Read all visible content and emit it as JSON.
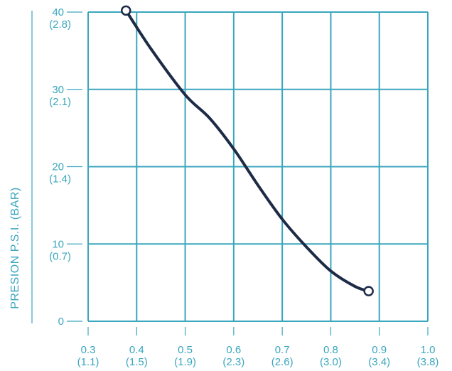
{
  "colors": {
    "grid": "#3aa6bd",
    "text": "#3aa6bd",
    "line": "#1d2b47",
    "marker_fill": "#ffffff"
  },
  "chart_data": {
    "type": "line",
    "title": "",
    "ylabel": "PRESION P.S.I. (BAR)",
    "xlabel": "",
    "xlim": [
      0.3,
      1.0
    ],
    "ylim": [
      0,
      40
    ],
    "grid": true,
    "x_ticks": [
      {
        "value": 0.3,
        "label": "0.3",
        "sub": "(1.1)"
      },
      {
        "value": 0.4,
        "label": "0.4",
        "sub": "(1.5)"
      },
      {
        "value": 0.5,
        "label": "0.5",
        "sub": "(1.9)"
      },
      {
        "value": 0.6,
        "label": "0.6",
        "sub": "(2.3)"
      },
      {
        "value": 0.7,
        "label": "0.7",
        "sub": "(2.6)"
      },
      {
        "value": 0.8,
        "label": "0.8",
        "sub": "(3.0)"
      },
      {
        "value": 0.9,
        "label": "0.9",
        "sub": "(3.4)"
      },
      {
        "value": 1.0,
        "label": "1.0",
        "sub": "(3.8)"
      }
    ],
    "y_ticks": [
      {
        "value": 0,
        "label": "0",
        "sub": ""
      },
      {
        "value": 10,
        "label": "10",
        "sub": "(0.7)"
      },
      {
        "value": 20,
        "label": "20",
        "sub": "(1.4)"
      },
      {
        "value": 30,
        "label": "30",
        "sub": "(2.1)"
      },
      {
        "value": 40,
        "label": "40",
        "sub": "(2.8)"
      }
    ],
    "y_gridlines": [
      0,
      10,
      20,
      30,
      40
    ],
    "x_gridlines": [
      0.3,
      0.4,
      0.5,
      0.6,
      0.7,
      0.8,
      0.9,
      1.0
    ],
    "series": [
      {
        "x": [
          0.378,
          0.43,
          0.5,
          0.55,
          0.6,
          0.65,
          0.7,
          0.75,
          0.8,
          0.85,
          0.878
        ],
        "y": [
          40.2,
          35.2,
          29.3,
          26.3,
          22.3,
          17.6,
          13.2,
          9.6,
          6.5,
          4.5,
          3.9
        ],
        "markers_at_ends": true
      }
    ]
  }
}
